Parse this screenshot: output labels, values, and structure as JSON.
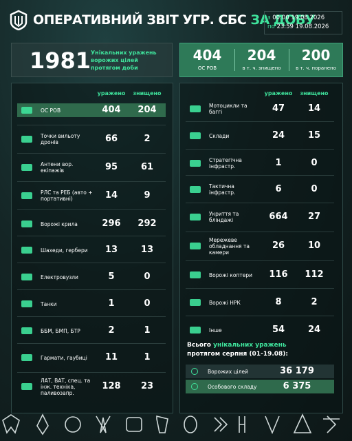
{
  "header": {
    "title": "ОПЕРАТИВНИЙ ЗВІТ УГР. СБС",
    "title_accent": "ЗА ДОБУ",
    "period": [
      {
        "prefix": "з",
        "text": "00:00 19.08.2026"
      },
      {
        "prefix": "по",
        "text": "23:59 19.08.2026"
      }
    ]
  },
  "summary": {
    "total": "1981",
    "total_label": "Унікальних уражень ворожих цілей протягом доби",
    "stats": [
      {
        "value": "404",
        "label": "ОС РОВ"
      },
      {
        "value": "204",
        "label": "в т. ч. знищено"
      },
      {
        "value": "200",
        "label": "в т. ч. поранено"
      }
    ]
  },
  "tables": {
    "columns": [
      "уражено",
      "знищено"
    ],
    "left": [
      {
        "label": "ОС РОВ",
        "hit": "404",
        "destroyed": "204"
      },
      {
        "label": "Точки вильоту дронів",
        "hit": "66",
        "destroyed": "2"
      },
      {
        "label": "Антени вор. екіпажів",
        "hit": "95",
        "destroyed": "61"
      },
      {
        "label": "РЛС та РЕБ (авто + портативні)",
        "hit": "14",
        "destroyed": "9"
      },
      {
        "label": "Ворожі крила",
        "hit": "296",
        "destroyed": "292"
      },
      {
        "label": "Шахеди, гербери",
        "hit": "13",
        "destroyed": "13"
      },
      {
        "label": "Електровузли",
        "hit": "5",
        "destroyed": "0"
      },
      {
        "label": "Танки",
        "hit": "1",
        "destroyed": "0"
      },
      {
        "label": "ББМ, БМП, БТР",
        "hit": "2",
        "destroyed": "1"
      },
      {
        "label": "Гармати, гаубиці",
        "hit": "11",
        "destroyed": "1"
      },
      {
        "label": "ЛАТ, ВАТ, спец. та інж. техніка, паливозапр.",
        "hit": "128",
        "destroyed": "23"
      }
    ],
    "right": [
      {
        "label": "Мотоцикли та баггі",
        "hit": "47",
        "destroyed": "14"
      },
      {
        "label": "Склади",
        "hit": "24",
        "destroyed": "15"
      },
      {
        "label": "Стратегічна інфрастр.",
        "hit": "1",
        "destroyed": "0"
      },
      {
        "label": "Тактична інфрастр.",
        "hit": "6",
        "destroyed": "0"
      },
      {
        "label": "Укриття та бліндажі",
        "hit": "664",
        "destroyed": "27"
      },
      {
        "label": "Мережеве обладнання та камери",
        "hit": "26",
        "destroyed": "10"
      },
      {
        "label": "Ворожі коптери",
        "hit": "116",
        "destroyed": "112"
      },
      {
        "label": "Ворожі НРК",
        "hit": "8",
        "destroyed": "2"
      },
      {
        "label": "Інше",
        "hit": "54",
        "destroyed": "24"
      }
    ]
  },
  "monthly": {
    "title_prefix": "Всього",
    "title_accent": "унікальних уражень",
    "title_suffix": "протягом серпня (01-19.08):",
    "rows": [
      {
        "label": "Ворожих цілей",
        "value": "36 179"
      },
      {
        "label": "Особового складу",
        "value": "6 375"
      }
    ]
  }
}
